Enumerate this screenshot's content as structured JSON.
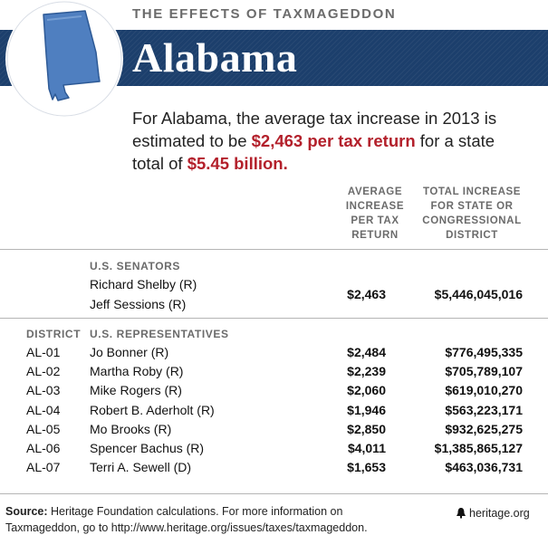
{
  "header": {
    "kicker": "THE EFFECTS OF TAXMAGEDDON",
    "state": "Alabama"
  },
  "intro": {
    "text_1": "For Alabama, the average tax increase in 2013 is estimated to be ",
    "highlight_1": "$2,463 per tax return",
    "text_2": " for a state total of ",
    "highlight_2": "$5.45 billion."
  },
  "columns": {
    "avg": "AVERAGE\nINCREASE\nPER TAX\nRETURN",
    "total": "TOTAL INCREASE\nFOR STATE OR\nCONGRESSIONAL\nDISTRICT"
  },
  "senators": {
    "label": "U.S. SENATORS",
    "names": [
      "Richard Shelby (R)",
      "Jeff Sessions (R)"
    ],
    "avg": "$2,463",
    "total": "$5,446,045,016"
  },
  "representatives": {
    "district_label": "DISTRICT",
    "label": "U.S. REPRESENTATIVES",
    "rows": [
      {
        "district": "AL-01",
        "name": "Jo Bonner (R)",
        "avg": "$2,484",
        "total": "$776,495,335"
      },
      {
        "district": "AL-02",
        "name": "Martha Roby (R)",
        "avg": "$2,239",
        "total": "$705,789,107"
      },
      {
        "district": "AL-03",
        "name": "Mike Rogers (R)",
        "avg": "$2,060",
        "total": "$619,010,270"
      },
      {
        "district": "AL-04",
        "name": "Robert B. Aderholt (R)",
        "avg": "$1,946",
        "total": "$563,223,171"
      },
      {
        "district": "AL-05",
        "name": "Mo Brooks (R)",
        "avg": "$2,850",
        "total": "$932,625,275"
      },
      {
        "district": "AL-06",
        "name": "Spencer Bachus (R)",
        "avg": "$4,011",
        "total": "$1,385,865,127"
      },
      {
        "district": "AL-07",
        "name": "Terri A. Sewell (D)",
        "avg": "$1,653",
        "total": "$463,036,731"
      }
    ]
  },
  "footer": {
    "source_label": "Source:",
    "source_text": " Heritage Foundation calculations. For more information on Taxmageddon, go to http://www.heritage.org/issues/taxes/taxmageddon.",
    "brand": "heritage.org"
  },
  "colors": {
    "banner": "#1c3f6c",
    "highlight": "#b3202b",
    "map": "#4f7fc0"
  }
}
